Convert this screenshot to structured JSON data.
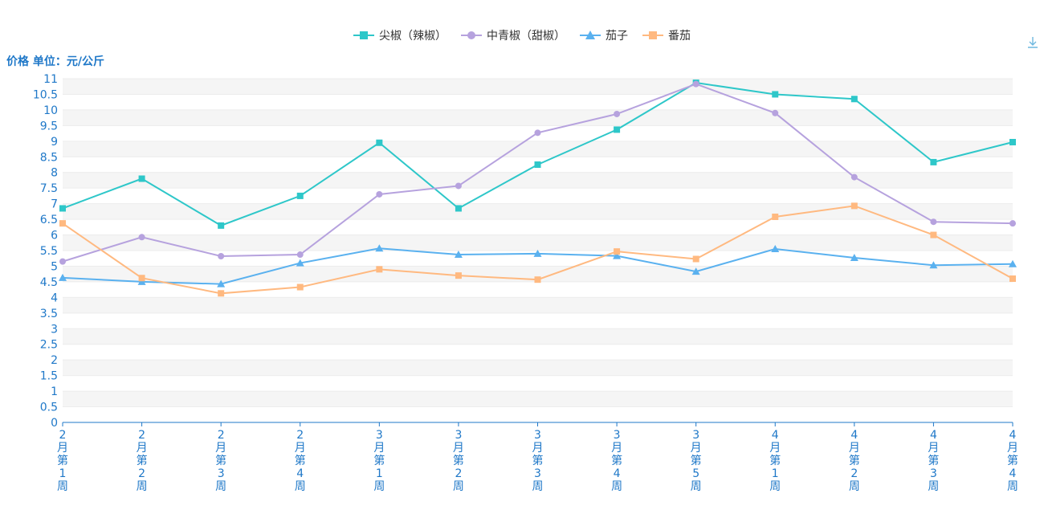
{
  "chart_data": {
    "type": "line",
    "ylabel": "价格 单位：元/公斤",
    "categories": [
      "2月第1周",
      "2月第2周",
      "2月第3周",
      "2月第4周",
      "3月第1周",
      "3月第2周",
      "3月第3周",
      "3月第4周",
      "3月第5周",
      "4月第1周",
      "4月第2周",
      "4月第3周",
      "4月第4周"
    ],
    "ylim": [
      0,
      11
    ],
    "yticks": [
      "0",
      "0.5",
      "1",
      "1.5",
      "2",
      "2.5",
      "3",
      "3.5",
      "4",
      "4.5",
      "5",
      "5.5",
      "6",
      "6.5",
      "7",
      "7.5",
      "8",
      "8.5",
      "9",
      "9.5",
      "10",
      "10.5",
      "11"
    ],
    "grid": true,
    "legend_position": "top",
    "series": [
      {
        "name": "尖椒（辣椒）",
        "color": "#2ec7c9",
        "marker": "square",
        "values": [
          6.85,
          7.8,
          6.3,
          7.25,
          8.95,
          6.85,
          8.25,
          9.37,
          10.87,
          10.5,
          10.35,
          8.33,
          8.97
        ]
      },
      {
        "name": "中青椒（甜椒）",
        "color": "#b6a2de",
        "marker": "circle",
        "values": [
          5.15,
          5.93,
          5.32,
          5.37,
          7.3,
          7.57,
          9.27,
          9.87,
          10.83,
          9.9,
          7.85,
          6.42,
          6.37
        ]
      },
      {
        "name": "茄子",
        "color": "#5ab1ef",
        "marker": "triangle",
        "values": [
          4.63,
          4.5,
          4.43,
          5.1,
          5.57,
          5.37,
          5.4,
          5.33,
          4.83,
          5.55,
          5.27,
          5.03,
          5.07
        ]
      },
      {
        "name": "番茄",
        "color": "#ffb980",
        "marker": "square",
        "values": [
          6.37,
          4.62,
          4.13,
          4.33,
          4.9,
          4.7,
          4.57,
          5.47,
          5.23,
          6.58,
          6.93,
          6.0,
          4.6
        ]
      }
    ],
    "toolbar_icon": "download-icon"
  }
}
